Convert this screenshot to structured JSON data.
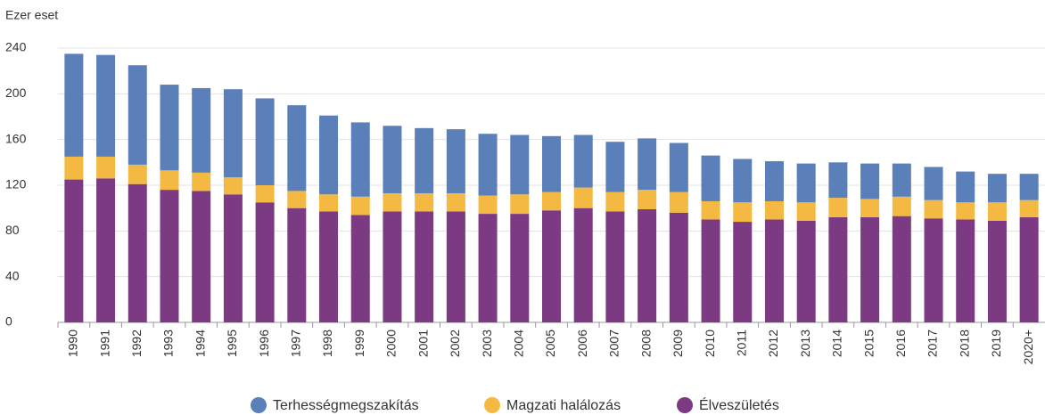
{
  "chart_data": {
    "type": "stacked_bar",
    "y_label": "Ezer eset",
    "categories": [
      "1990",
      "1991",
      "1992",
      "1993",
      "1994",
      "1995",
      "1996",
      "1997",
      "1998",
      "1999",
      "2000",
      "2001",
      "2002",
      "2003",
      "2004",
      "2005",
      "2006",
      "2007",
      "2008",
      "2009",
      "2010",
      "2011",
      "2012",
      "2013",
      "2014",
      "2015",
      "2016",
      "2017",
      "2018",
      "2019",
      "2020+"
    ],
    "series": [
      {
        "name": "Terhességmegszakítás",
        "color": "#5b7fb9",
        "values": [
          90,
          89,
          87,
          75,
          74,
          77,
          76,
          75,
          69,
          65,
          59,
          57,
          56,
          54,
          52,
          49,
          46,
          44,
          45,
          43,
          40,
          38,
          35,
          34,
          31,
          31,
          29,
          29,
          27,
          25,
          23
        ]
      },
      {
        "name": "Magzati halálozás",
        "color": "#f4b942",
        "values": [
          20,
          19,
          17,
          17,
          16,
          15,
          15,
          15,
          15,
          16,
          16,
          16,
          16,
          16,
          17,
          16,
          18,
          17,
          17,
          18,
          16,
          17,
          16,
          16,
          17,
          16,
          17,
          16,
          15,
          16,
          15
        ]
      },
      {
        "name": "Élveszületés",
        "color": "#7c3a82",
        "values": [
          125,
          126,
          121,
          116,
          115,
          112,
          105,
          100,
          97,
          94,
          97,
          97,
          97,
          95,
          95,
          98,
          100,
          97,
          99,
          96,
          90,
          88,
          90,
          89,
          92,
          92,
          93,
          91,
          90,
          89,
          92
        ]
      }
    ],
    "ylim": [
      0,
      240
    ],
    "yticks": [
      0,
      40,
      80,
      120,
      160,
      200,
      240
    ],
    "grid": true,
    "legend": "bottom"
  }
}
